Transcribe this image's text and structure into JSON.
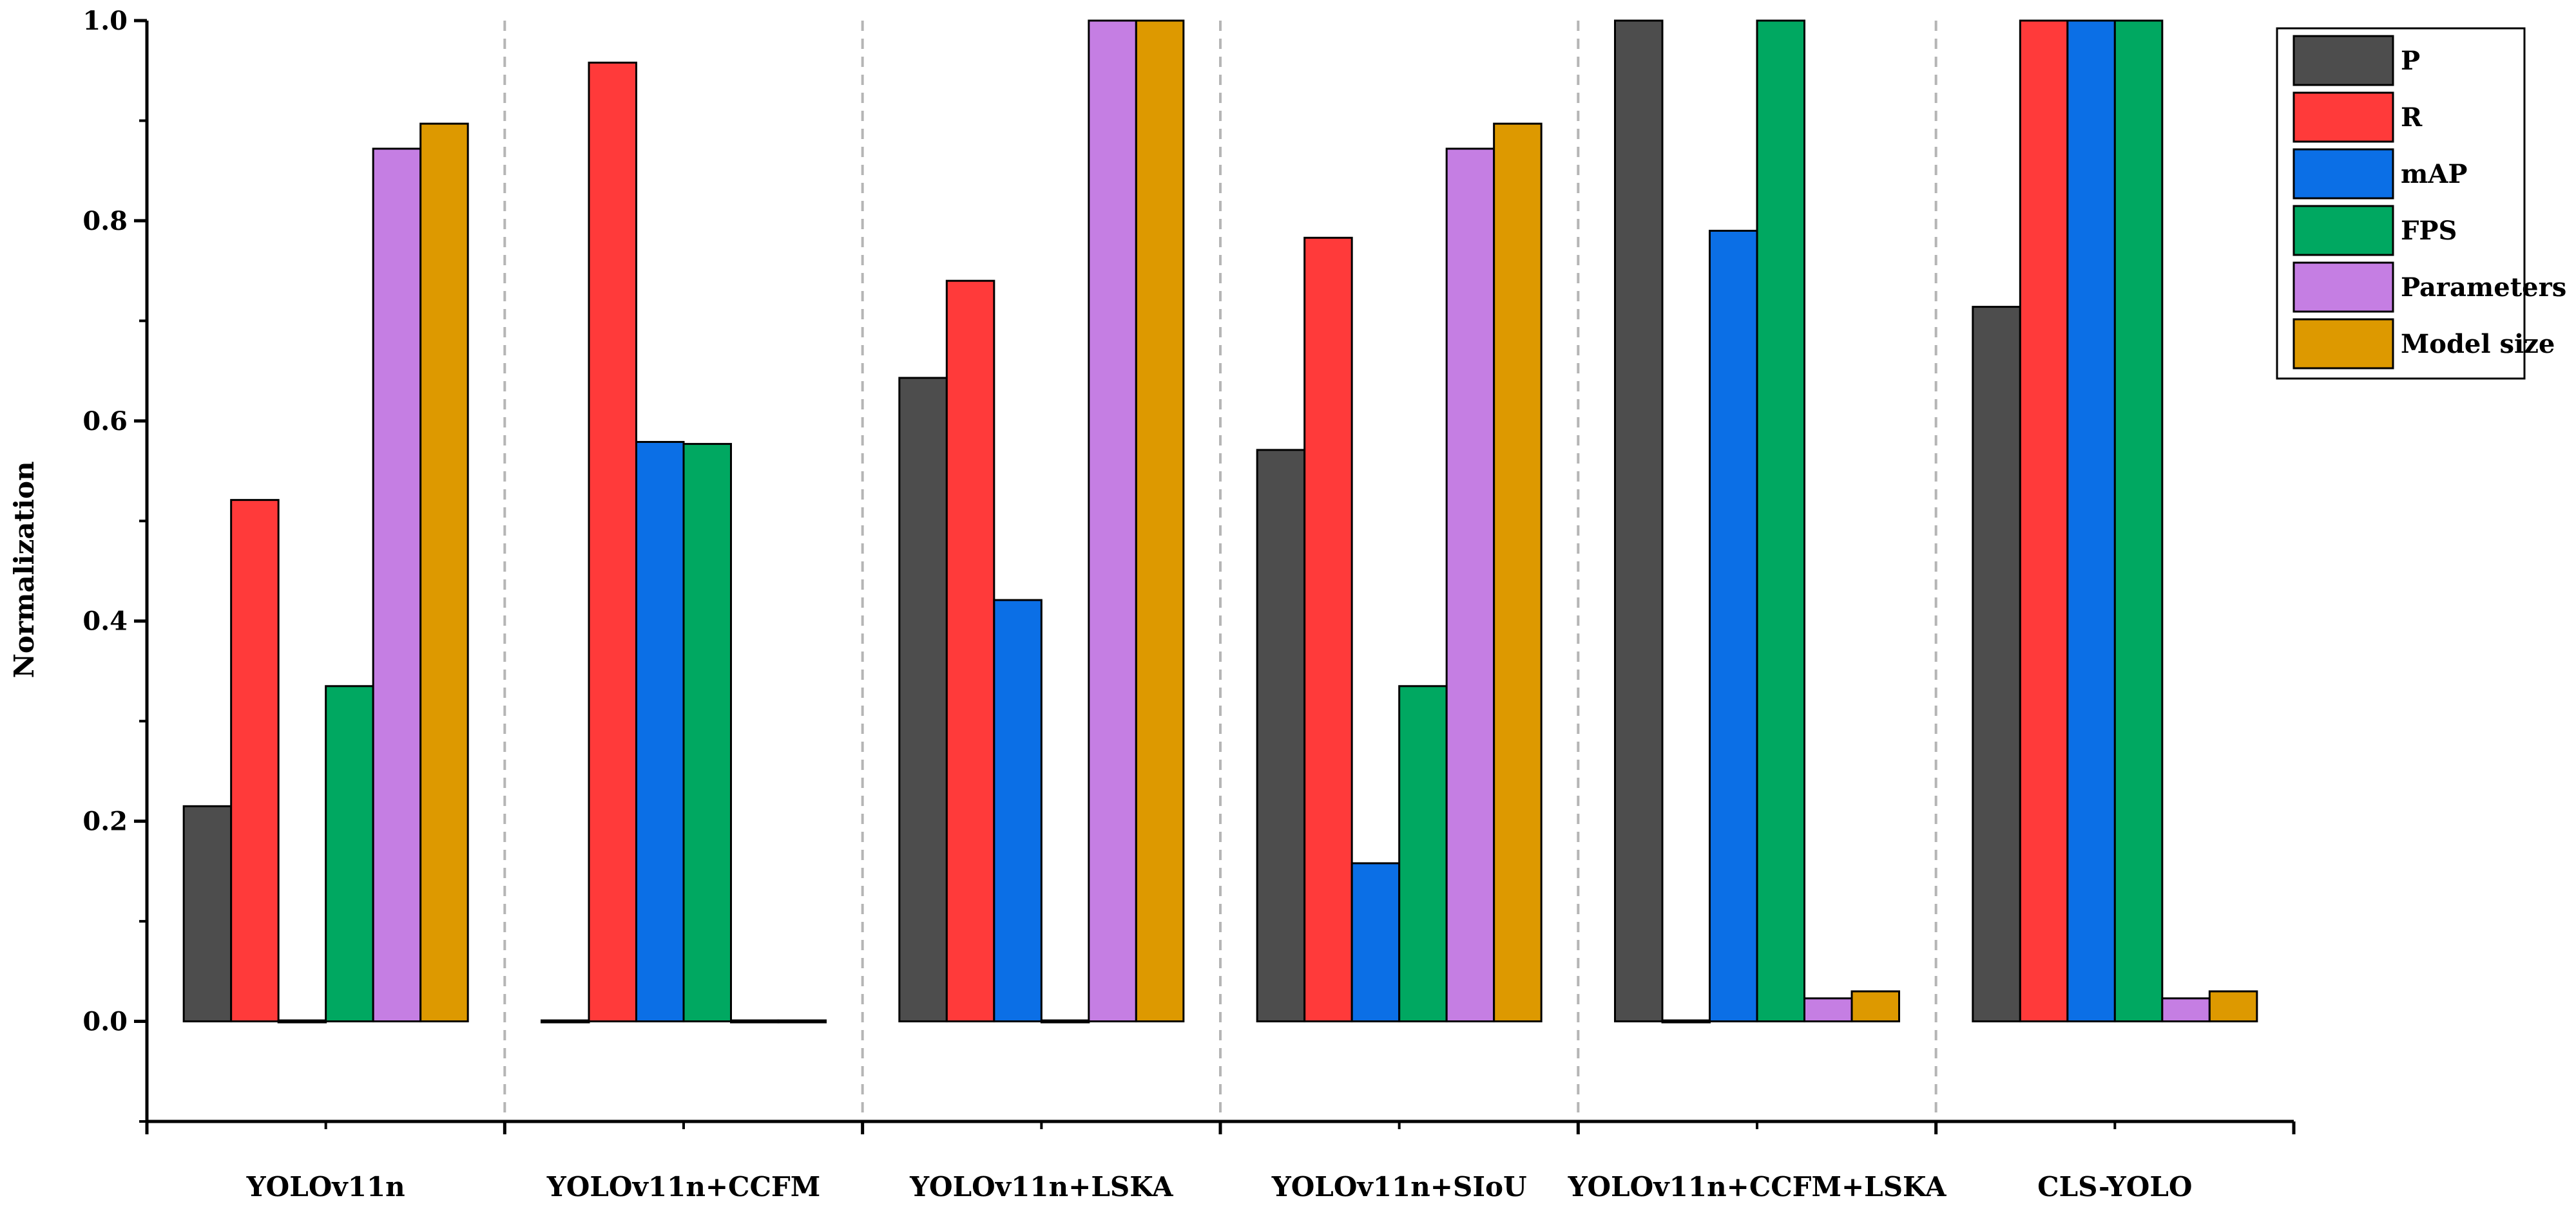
{
  "chart_data": {
    "type": "bar",
    "title": "",
    "xlabel": "",
    "ylabel": "Normalization",
    "ylim": [
      -0.1,
      1.0
    ],
    "yticks": [
      "0.0",
      "0.2",
      "0.4",
      "0.6",
      "0.8",
      "1.0"
    ],
    "grid": false,
    "legend_position": "top-right",
    "categories": [
      "YOLOv11n",
      "YOLOv11n+CCFM",
      "YOLOv11n+LSKA",
      "YOLOv11n+SIoU",
      "YOLOv11n+CCFM+LSKA",
      "CLS-YOLO"
    ],
    "series": [
      {
        "name": "P",
        "color": "#4d4d4d",
        "values": [
          0.215,
          0.0,
          0.643,
          0.571,
          1.0,
          0.714
        ]
      },
      {
        "name": "R",
        "color": "#ff3a3a",
        "values": [
          0.521,
          0.958,
          0.74,
          0.783,
          0.0,
          1.0
        ]
      },
      {
        "name": "mAP",
        "color": "#0b6fe6",
        "values": [
          0.0,
          0.579,
          0.421,
          0.158,
          0.79,
          1.0
        ]
      },
      {
        "name": "FPS",
        "color": "#00a861",
        "values": [
          0.335,
          0.577,
          0.0,
          0.335,
          1.0,
          1.0
        ]
      },
      {
        "name": "Parameters",
        "color": "#c57ee3",
        "values": [
          0.872,
          0.0,
          1.0,
          0.872,
          0.023,
          0.023
        ]
      },
      {
        "name": "Model size",
        "color": "#dd9900",
        "values": [
          0.897,
          0.0,
          1.0,
          0.897,
          0.03,
          0.03
        ]
      }
    ]
  }
}
